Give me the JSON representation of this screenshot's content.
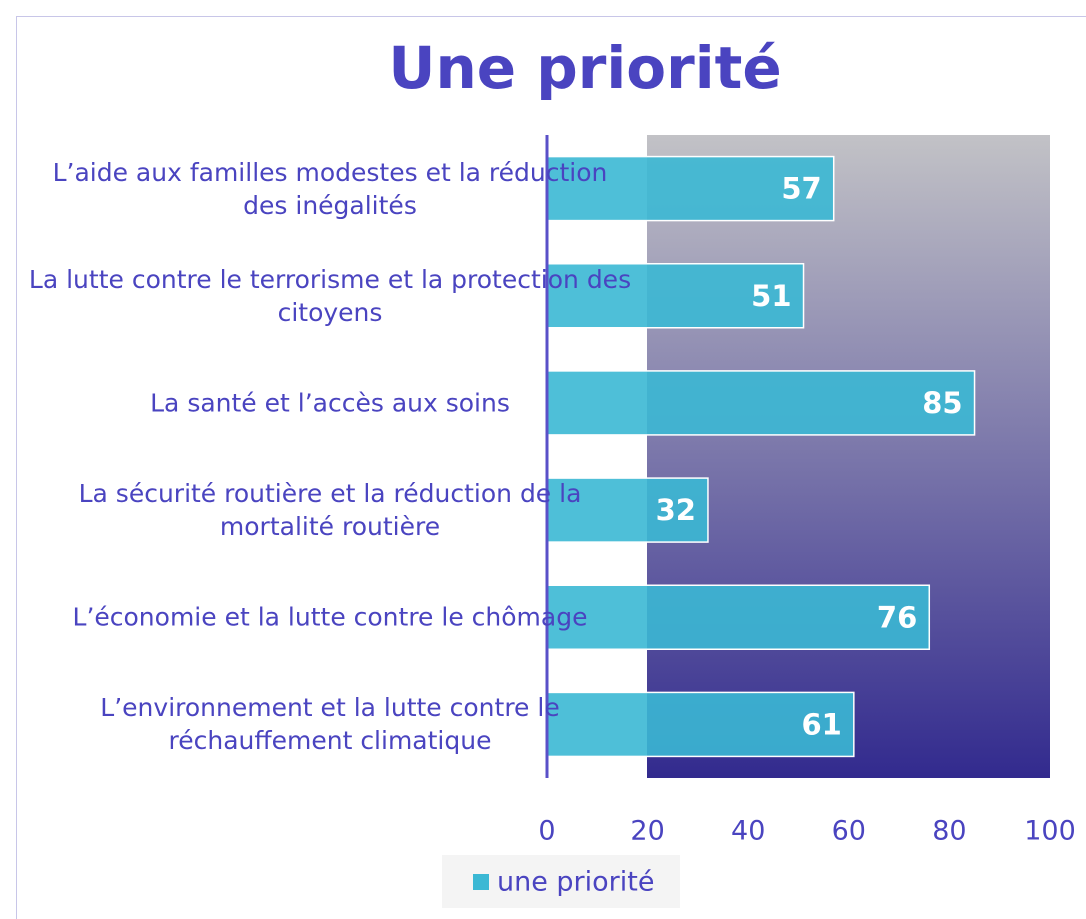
{
  "chart_data": {
    "type": "barh",
    "title": "Une priorité",
    "categories": [
      "L’aide aux familles modestes et la réduction des inégalités",
      "La lutte contre le terrorisme et la protection des citoyens",
      "La santé et l’accès aux soins",
      "La sécurité routière et la réduction de la mortalité routière",
      "L’économie et la lutte contre le chômage",
      "L’environnement et la lutte contre le réchauffement climatique"
    ],
    "series": [
      {
        "name": "une priorité",
        "color": "#3bb8d4",
        "values": [
          57,
          51,
          85,
          32,
          76,
          61
        ]
      }
    ],
    "xlim": [
      0,
      100
    ],
    "xticks": [
      0,
      20,
      40,
      60,
      80,
      100
    ],
    "legend": "bottom"
  }
}
